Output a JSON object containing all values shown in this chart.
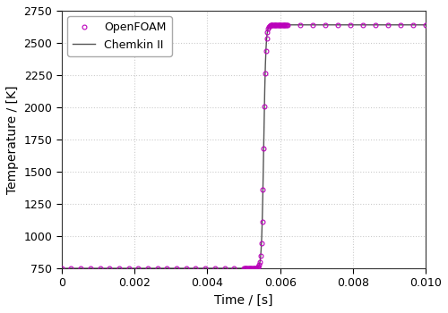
{
  "title": "",
  "xlabel": "Time / [s]",
  "ylabel": "Temperature / [K]",
  "xlim": [
    0,
    0.01
  ],
  "ylim": [
    750,
    2750
  ],
  "yticks": [
    750,
    1000,
    1250,
    1500,
    1750,
    2000,
    2250,
    2500,
    2750
  ],
  "xticks": [
    0,
    0.002,
    0.004,
    0.006,
    0.008,
    0.01
  ],
  "chemkin_color": "#555555",
  "openfoam_color": "#bb00bb",
  "T_init": 750,
  "T_final": 2640,
  "ignition_time": 0.00555,
  "steepness": 35000,
  "background_color": "#ffffff",
  "plot_bg_color": "#ffffff",
  "grid_color": "#cccccc",
  "legend_openfoam": "OpenFOAM",
  "legend_chemkin": "Chemkin II"
}
